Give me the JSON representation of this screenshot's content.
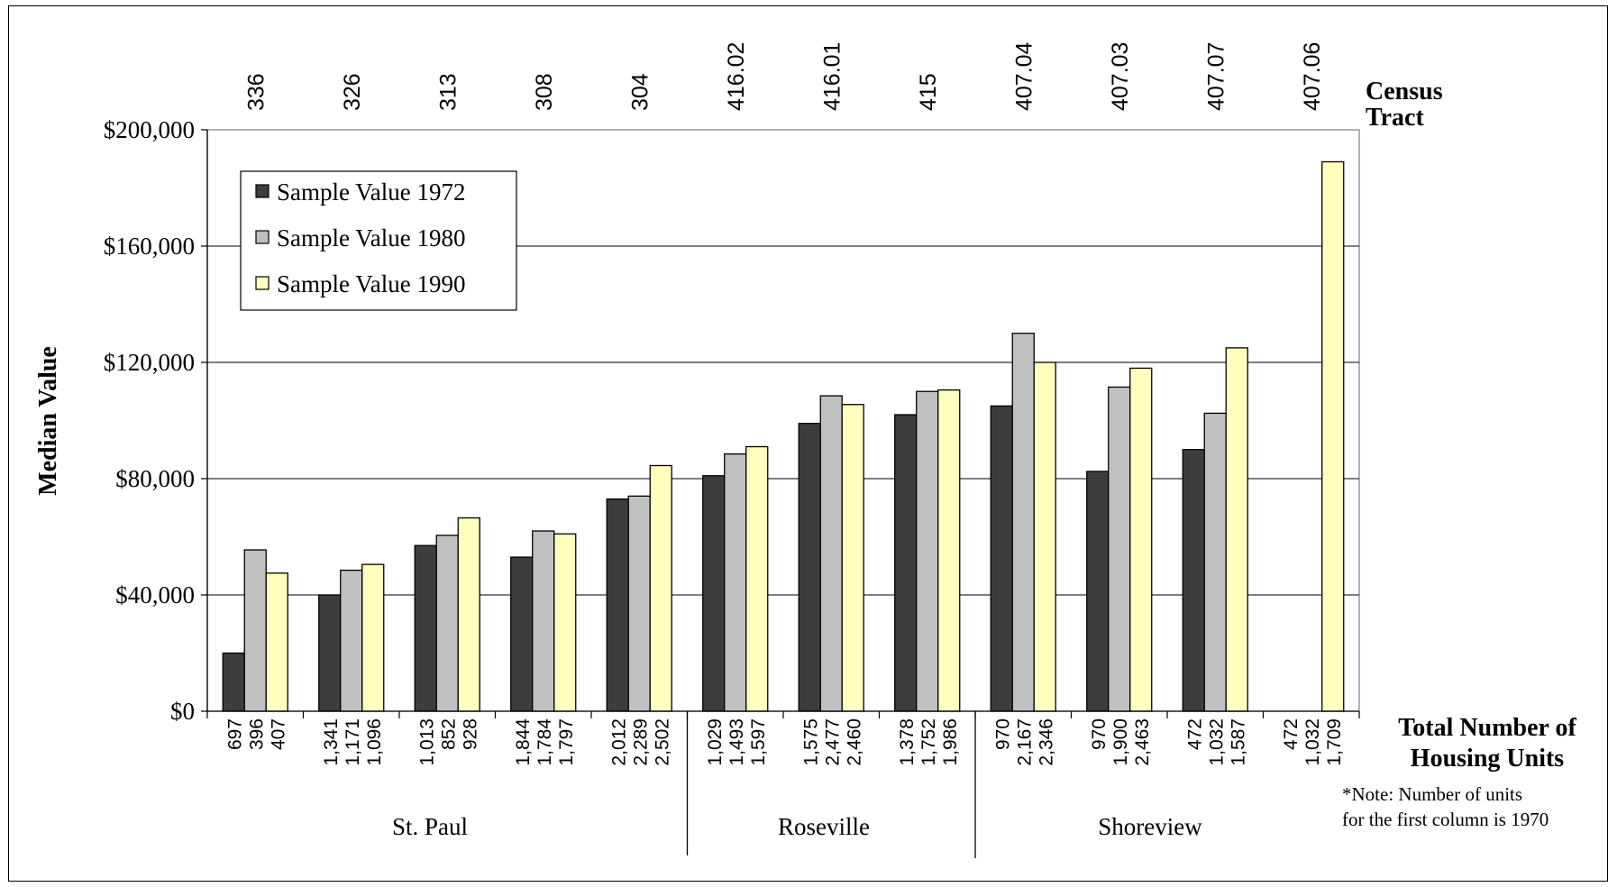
{
  "chart_data": {
    "type": "bar",
    "ylabel": "Median Value",
    "ylim": [
      0,
      200000
    ],
    "yticks": [
      0,
      40000,
      80000,
      120000,
      160000,
      200000
    ],
    "ytick_labels": [
      "$0",
      "$40,000",
      "$80,000",
      "$120,000",
      "$160,000",
      "$200,000"
    ],
    "grid": true,
    "legend_position": "top-left",
    "top_axis_title": "Census Tract",
    "bottom_axis_title": "Total Number of Housing Units",
    "note": "*Note:  Number of units for the first column is 1970",
    "categories": [
      "336",
      "326",
      "313",
      "308",
      "304",
      "416.02",
      "416.01",
      "415",
      "407.04",
      "407.03",
      "407.07",
      "407.06"
    ],
    "series": [
      {
        "name": "Sample Value 1972",
        "color": "#3d3d3d",
        "values": [
          20000,
          40000,
          57000,
          53000,
          73000,
          81000,
          99000,
          102000,
          105000,
          82500,
          90000,
          null
        ]
      },
      {
        "name": "Sample Value 1980",
        "color": "#c0c0c0",
        "values": [
          55500,
          48500,
          60500,
          62000,
          74000,
          88500,
          108500,
          110000,
          130000,
          111500,
          102500,
          null
        ]
      },
      {
        "name": "Sample Value 1990",
        "color": "#ffffc0",
        "values": [
          47500,
          50500,
          66500,
          61000,
          84500,
          91000,
          105500,
          110500,
          120000,
          118000,
          125000,
          189000
        ]
      }
    ],
    "unit_labels": [
      [
        "697",
        "396",
        "407"
      ],
      [
        "1,341",
        "1,171",
        "1,096"
      ],
      [
        "1,013",
        "852",
        "928"
      ],
      [
        "1,844",
        "1,784",
        "1,797"
      ],
      [
        "2,012",
        "2,289",
        "2,502"
      ],
      [
        "1,029",
        "1,493",
        "1,597"
      ],
      [
        "1,575",
        "2,477",
        "2,460"
      ],
      [
        "1,378",
        "1,752",
        "1,986"
      ],
      [
        "970",
        "2,167",
        "2,346"
      ],
      [
        "970",
        "1,900",
        "2,463"
      ],
      [
        "472",
        "1,032",
        "1,587"
      ],
      [
        "472",
        "1,032",
        "1,709"
      ]
    ],
    "groups": [
      {
        "name": "St. Paul",
        "start": 0,
        "end": 4
      },
      {
        "name": "Roseville",
        "start": 5,
        "end": 7
      },
      {
        "name": "Shoreview",
        "start": 8,
        "end": 11
      }
    ]
  }
}
